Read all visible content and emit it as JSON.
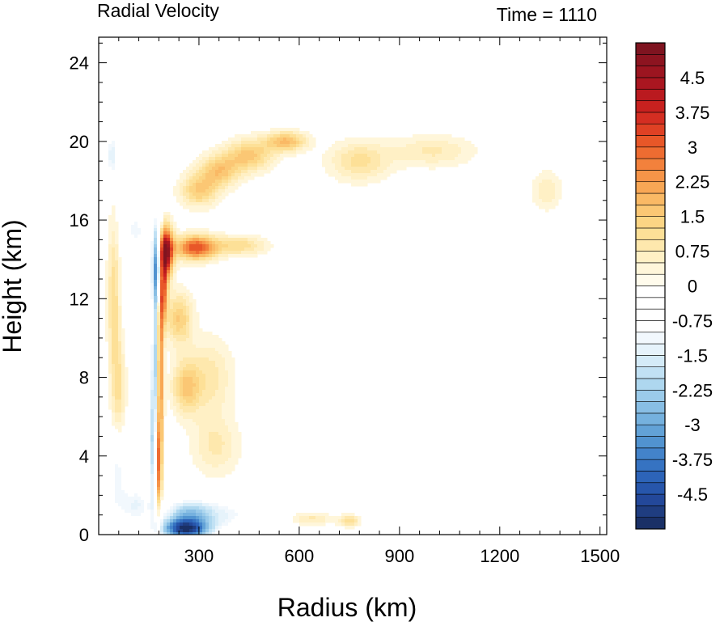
{
  "chart_data": {
    "type": "heatmap",
    "title": "Radial Velocity",
    "subtitle": "Time = 1110",
    "xlabel": "Radius (km)",
    "ylabel": "Height (km)",
    "xlim": [
      0,
      1520
    ],
    "ylim": [
      0,
      25.3
    ],
    "xticks": [
      300,
      600,
      900,
      1200,
      1500
    ],
    "xtick_labels": [
      "300",
      "600",
      "900",
      "1200",
      "1500"
    ],
    "yticks": [
      0,
      4,
      8,
      12,
      16,
      20,
      24
    ],
    "ytick_labels": [
      "0",
      "4",
      "8",
      "12",
      "16",
      "20",
      "24"
    ],
    "grid": false,
    "colorbar": {
      "placement": "right",
      "min": -5.25,
      "max": 5.25,
      "step": 0.25,
      "tick_values": [
        4.5,
        3.75,
        3,
        2.25,
        1.5,
        0.75,
        0,
        -0.75,
        -1.5,
        -2.25,
        -3,
        -3.75,
        -4.5
      ],
      "tick_labels": [
        "4.5",
        "3.75",
        "3",
        "2.25",
        "1.5",
        "0.75",
        "0",
        "-0.75",
        "-1.5",
        "-2.25",
        "-3",
        "-3.75",
        "-4.5"
      ],
      "colors_low_to_high": [
        "#1a3066",
        "#1f3d80",
        "#23489a",
        "#2756ab",
        "#2d64b8",
        "#3673c2",
        "#4383ca",
        "#5193d0",
        "#62a2d7",
        "#75b1de",
        "#88bee4",
        "#9bcbea",
        "#aed7ef",
        "#c1e1f4",
        "#d4ebf8",
        "#e6f3fb",
        "#f2f8fd",
        "#ffffff",
        "#ffffff",
        "#ffffff",
        "#ffffff",
        "#fffbec",
        "#fff6da",
        "#fff0c5",
        "#fee8ad",
        "#fde097",
        "#fcd584",
        "#fbc774",
        "#fab965",
        "#f8a755",
        "#f69448",
        "#f3813c",
        "#ee6c31",
        "#e85728",
        "#df4124",
        "#d42e22",
        "#c8211f",
        "#ba1a1f",
        "#aa1620",
        "#9c1520",
        "#8d1420",
        "#7f1420"
      ]
    },
    "features": [
      {
        "r": 175,
        "z": 13.8,
        "v": -4.2,
        "sr": 14,
        "sz": 2.0
      },
      {
        "r": 168,
        "z": 9.0,
        "v": -2.2,
        "sr": 9,
        "sz": 3.5
      },
      {
        "r": 160,
        "z": 4.5,
        "v": -1.8,
        "sr": 10,
        "sz": 3.0
      },
      {
        "r": 200,
        "z": 14.4,
        "v": 5.0,
        "sr": 22,
        "sz": 1.2
      },
      {
        "r": 192,
        "z": 12.5,
        "v": 3.2,
        "sr": 13,
        "sz": 1.6
      },
      {
        "r": 185,
        "z": 8.5,
        "v": 2.6,
        "sr": 9,
        "sz": 4.0
      },
      {
        "r": 180,
        "z": 3.5,
        "v": 2.6,
        "sr": 8,
        "sz": 2.5
      },
      {
        "r": 290,
        "z": 14.6,
        "v": 3.2,
        "sr": 60,
        "sz": 0.6
      },
      {
        "r": 420,
        "z": 14.7,
        "v": 1.2,
        "sr": 80,
        "sz": 0.5
      },
      {
        "r": 240,
        "z": 11.0,
        "v": 1.5,
        "sr": 40,
        "sz": 1.3
      },
      {
        "r": 260,
        "z": 7.5,
        "v": 1.4,
        "sr": 40,
        "sz": 1.3
      },
      {
        "r": 330,
        "z": 8.0,
        "v": 0.9,
        "sr": 70,
        "sz": 2.0
      },
      {
        "r": 350,
        "z": 4.5,
        "v": 0.8,
        "sr": 70,
        "sz": 1.5
      },
      {
        "r": 260,
        "z": 0.3,
        "v": -5.0,
        "sr": 70,
        "sz": 0.55
      },
      {
        "r": 270,
        "z": 1.2,
        "v": -2.0,
        "sr": 70,
        "sz": 0.6
      },
      {
        "r": 110,
        "z": 1.5,
        "v": -1.3,
        "sr": 50,
        "sz": 1.0
      },
      {
        "r": 380,
        "z": 1.0,
        "v": -1.1,
        "sr": 90,
        "sz": 0.8
      },
      {
        "r": 40,
        "z": 19.3,
        "v": -1.6,
        "sr": 14,
        "sz": 1.2
      },
      {
        "r": 45,
        "z": 12.0,
        "v": 1.2,
        "sr": 18,
        "sz": 4.0
      },
      {
        "r": 60,
        "z": 7.5,
        "v": 1.0,
        "sr": 20,
        "sz": 2.5
      },
      {
        "r": 55,
        "z": 3.0,
        "v": -1.2,
        "sr": 25,
        "sz": 1.8
      },
      {
        "r": 110,
        "z": 15.5,
        "v": -1.1,
        "sr": 40,
        "sz": 1.2
      },
      {
        "r": 300,
        "z": 17.5,
        "v": 1.5,
        "sr": 55,
        "sz": 0.8
      },
      {
        "r": 360,
        "z": 18.5,
        "v": 1.6,
        "sr": 60,
        "sz": 0.8
      },
      {
        "r": 450,
        "z": 19.3,
        "v": 1.6,
        "sr": 70,
        "sz": 0.8
      },
      {
        "r": 560,
        "z": 20.0,
        "v": 1.8,
        "sr": 60,
        "sz": 0.5
      },
      {
        "r": 780,
        "z": 19.0,
        "v": 1.1,
        "sr": 90,
        "sz": 1.0
      },
      {
        "r": 1000,
        "z": 19.5,
        "v": 0.8,
        "sr": 120,
        "sz": 0.8
      },
      {
        "r": 1340,
        "z": 17.5,
        "v": 0.7,
        "sr": 45,
        "sz": 1.0
      },
      {
        "r": 640,
        "z": 0.8,
        "v": 0.8,
        "sr": 60,
        "sz": 0.3
      },
      {
        "r": 750,
        "z": 0.7,
        "v": 1.2,
        "sr": 30,
        "sz": 0.3
      },
      {
        "r": 880,
        "z": 6.0,
        "v": -0.4,
        "sr": 150,
        "sz": 3.0
      }
    ]
  }
}
